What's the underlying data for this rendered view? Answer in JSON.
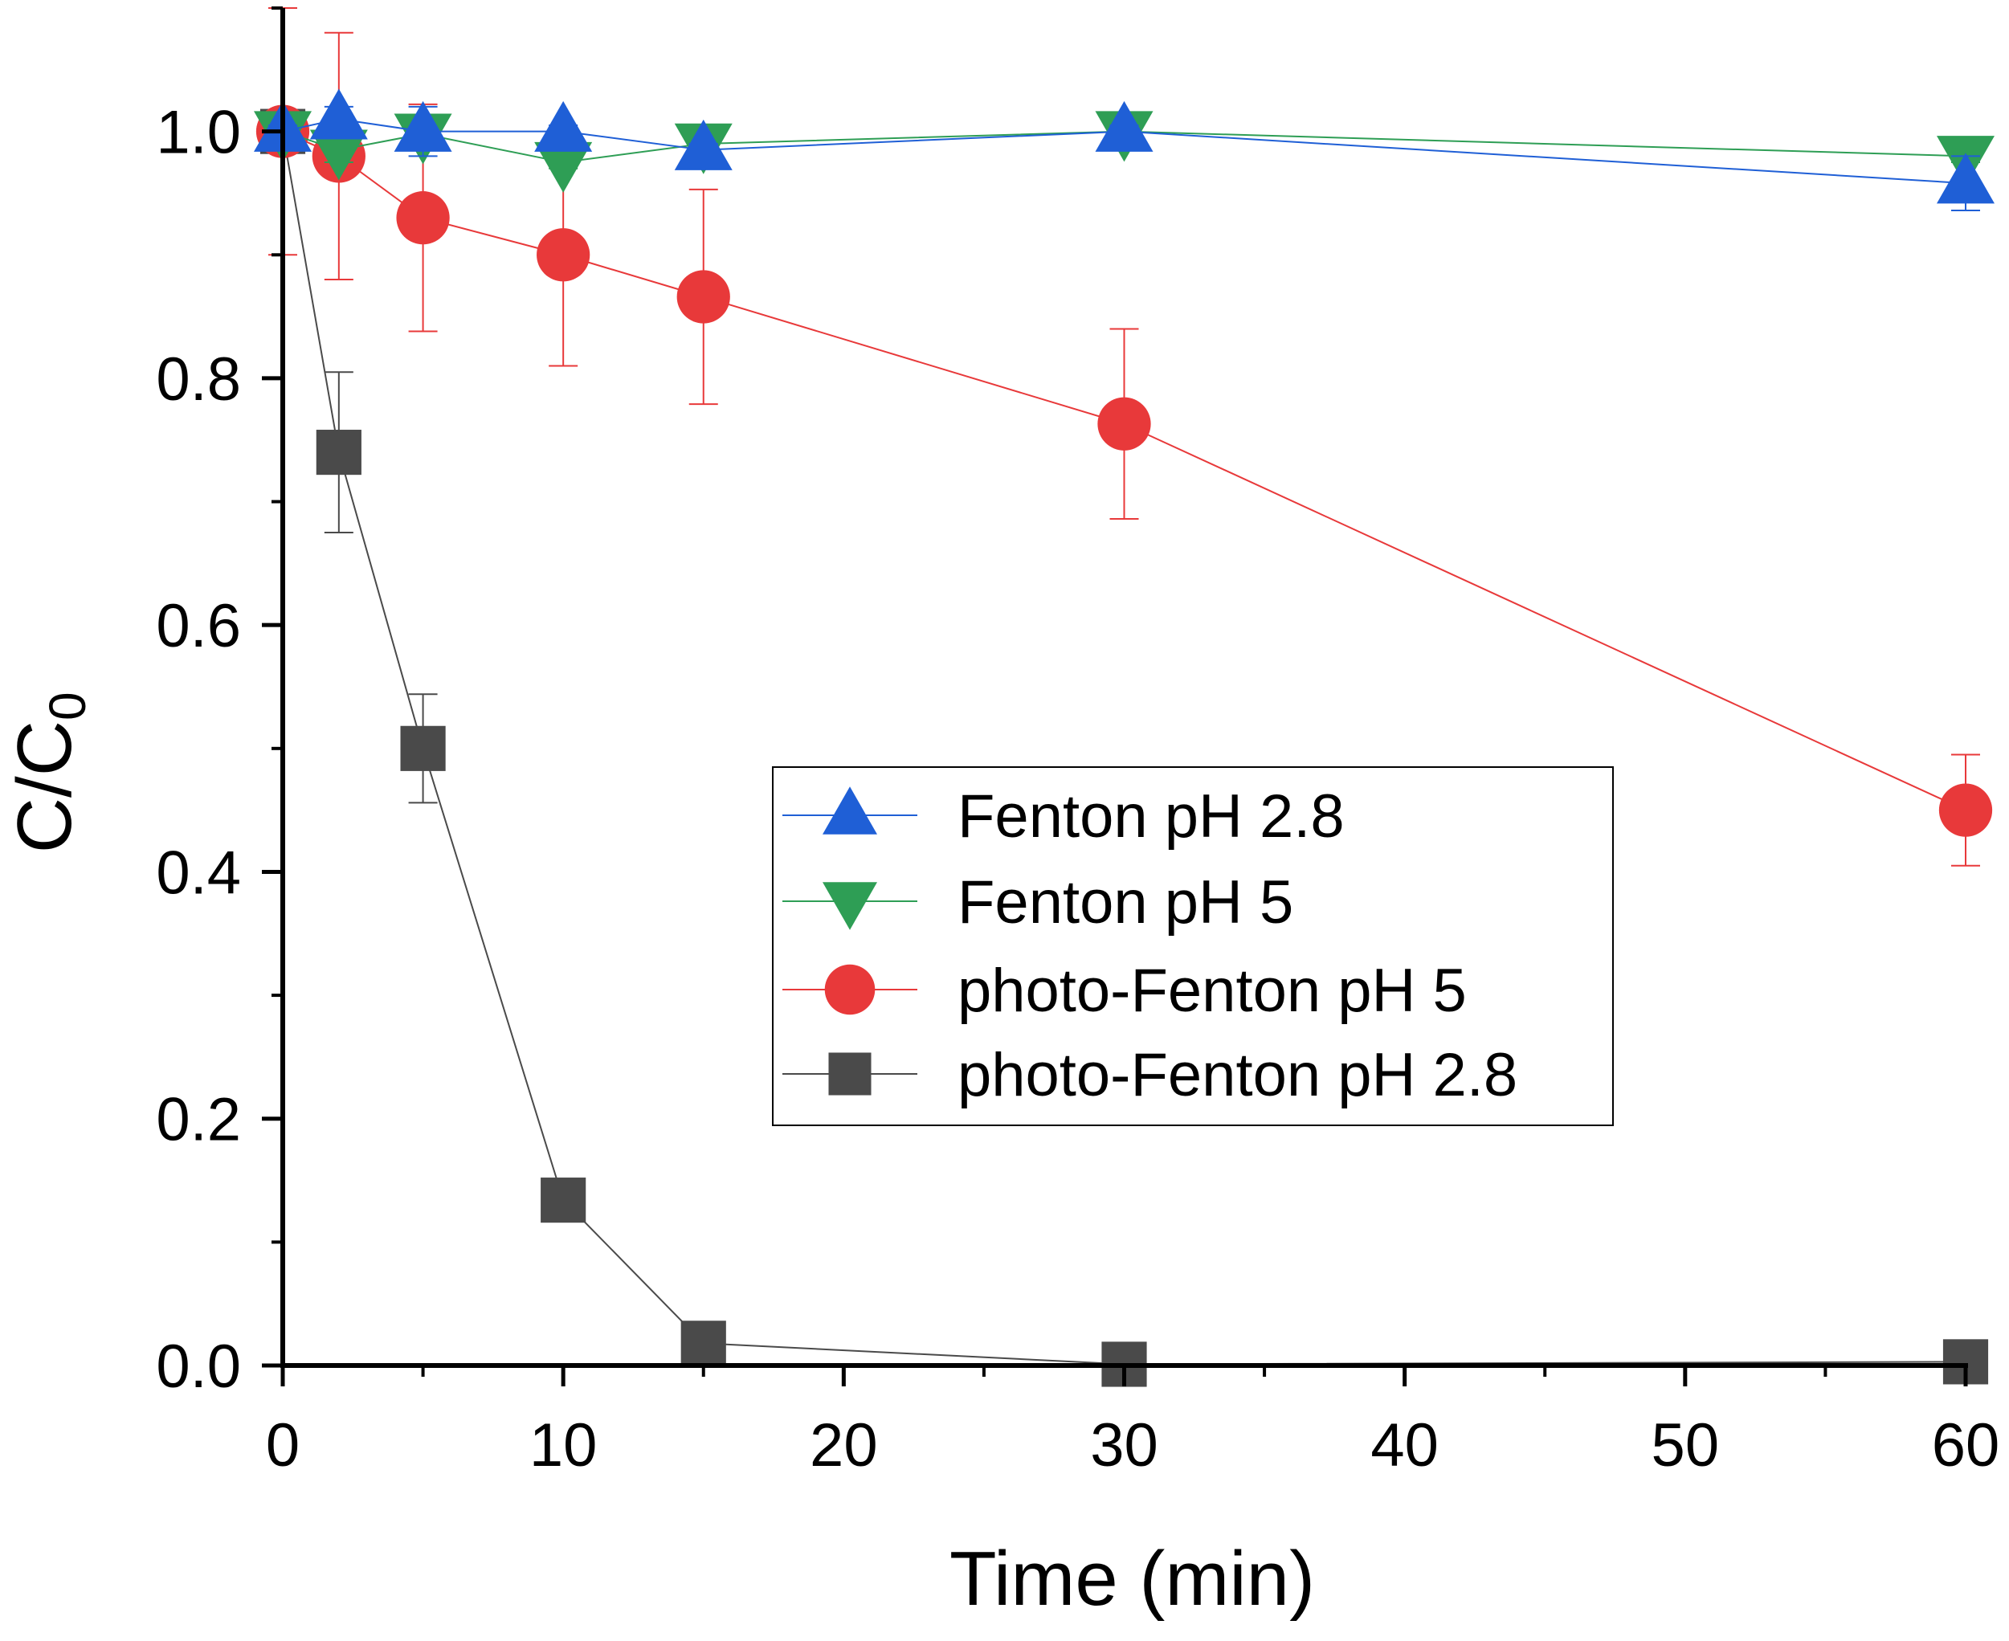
{
  "chart_data": {
    "type": "line",
    "title": "",
    "xlabel": "Time (min)",
    "ylabel_main": "C/C",
    "ylabel_sub": "0",
    "xlim": [
      0,
      60
    ],
    "ylim": [
      0,
      1.1
    ],
    "x_ticks": [
      0,
      10,
      20,
      30,
      40,
      50,
      60
    ],
    "x_tick_labels": [
      "0",
      "10",
      "20",
      "30",
      "40",
      "50",
      "60"
    ],
    "y_ticks": [
      0,
      0.2,
      0.4,
      0.6,
      0.8,
      1.0
    ],
    "y_tick_labels": [
      "0.0",
      "0.2",
      "0.4",
      "0.6",
      "0.8",
      "1.0"
    ],
    "x_minor_step": 5,
    "y_minor_step": 0.1,
    "legend_position": "center-right",
    "series": [
      {
        "name": "Fenton pH 2.8",
        "color": "#1f5fd6",
        "marker": "triangle-up",
        "x": [
          0,
          2,
          5,
          10,
          15,
          30,
          60
        ],
        "y": [
          1.0,
          1.01,
          1.0,
          1.0,
          0.985,
          1.0,
          0.958
        ],
        "err": [
          0.005,
          0.01,
          0.02,
          0.005,
          0.005,
          0.005,
          0.022
        ]
      },
      {
        "name": "Fenton pH 5",
        "color": "#2e9e55",
        "marker": "triangle-down",
        "x": [
          0,
          2,
          5,
          10,
          15,
          30,
          60
        ],
        "y": [
          1.0,
          0.985,
          0.998,
          0.975,
          0.99,
          1.0,
          0.98
        ],
        "err": [
          0.005,
          0.01,
          0.01,
          0.005,
          0.005,
          0.005,
          0.005
        ]
      },
      {
        "name": "photo-Fenton pH 5",
        "color": "#e8393a",
        "marker": "circle",
        "x": [
          0,
          2,
          5,
          10,
          15,
          30,
          60
        ],
        "y": [
          1.0,
          0.98,
          0.93,
          0.9,
          0.866,
          0.763,
          0.45
        ],
        "err": [
          0.1,
          0.1,
          0.092,
          0.09,
          0.087,
          0.077,
          0.045
        ]
      },
      {
        "name": "photo-Fenton pH 2.8",
        "color": "#4a4a4a",
        "marker": "square",
        "x": [
          0,
          2,
          5,
          10,
          15,
          30,
          60
        ],
        "y": [
          1.0,
          0.74,
          0.5,
          0.134,
          0.018,
          0.001,
          0.003
        ],
        "err": [
          0.0,
          0.065,
          0.044,
          0.0,
          0.0,
          0.0,
          0.0
        ]
      }
    ]
  }
}
